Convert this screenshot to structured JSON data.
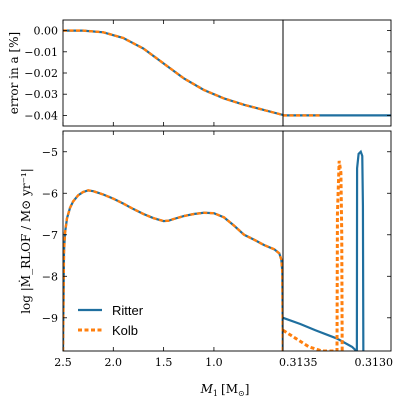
{
  "chart_data": {
    "type": "line",
    "colors": {
      "ritter": "#1f6f9f",
      "kolb": "#ff7f0e"
    },
    "xlabel": "M",
    "xlabel_sub": "1",
    "xlabel_unit": "[M",
    "xlabel_unit_sub": "⊙",
    "xlabel_unit_close": "]",
    "x_left_ticks": [
      "2.5",
      "2.0",
      "1.5",
      "1.0",
      "0.3135"
    ],
    "x_left_tick_values": [
      2.5,
      2.0,
      1.5,
      1.0,
      0.3135
    ],
    "x_left_range": [
      2.5,
      0.3135
    ],
    "x_right_ticks": [
      "0.3130"
    ],
    "x_right_range": [
      0.3135,
      0.313
    ],
    "top_panel": {
      "ylabel": "error in a [%]",
      "ylim": [
        -0.045,
        0.005
      ],
      "yticks": [
        "0.00",
        "−0.01",
        "−0.02",
        "−0.03",
        "−0.04"
      ],
      "ytick_values": [
        0.0,
        -0.01,
        -0.02,
        -0.03,
        -0.04
      ],
      "series_left": {
        "x": [
          2.5,
          2.3,
          2.1,
          1.9,
          1.7,
          1.5,
          1.3,
          1.1,
          0.9,
          0.7,
          0.5,
          0.3135
        ],
        "y": [
          0.0,
          0.0,
          -0.0008,
          -0.0035,
          -0.0085,
          -0.0155,
          -0.0225,
          -0.028,
          -0.032,
          -0.035,
          -0.0375,
          -0.0398
        ]
      },
      "series_right": {
        "x": [
          0.3135,
          0.313
        ],
        "y": [
          -0.04,
          -0.04
        ]
      }
    },
    "bottom_panel": {
      "ylabel": "log |Ṁ_RLOF / M⊙ yr⁻¹|",
      "ylim": [
        -9.8,
        -4.5
      ],
      "yticks": [
        "−5",
        "−6",
        "−7",
        "−8",
        "−9"
      ],
      "ytick_values": [
        -5,
        -6,
        -7,
        -8,
        -9
      ],
      "series_left": {
        "x": [
          2.5,
          2.49,
          2.48,
          2.46,
          2.43,
          2.4,
          2.35,
          2.3,
          2.25,
          2.2,
          2.15,
          2.1,
          2.0,
          1.9,
          1.8,
          1.7,
          1.6,
          1.5,
          1.45,
          1.4,
          1.3,
          1.2,
          1.1,
          1.0,
          0.9,
          0.8,
          0.7,
          0.6,
          0.5,
          0.45,
          0.4,
          0.35,
          0.33,
          0.32,
          0.315
        ],
        "y": [
          -9.8,
          -7.4,
          -6.95,
          -6.6,
          -6.35,
          -6.2,
          -6.05,
          -5.97,
          -5.93,
          -5.95,
          -5.99,
          -6.03,
          -6.13,
          -6.25,
          -6.38,
          -6.5,
          -6.6,
          -6.67,
          -6.66,
          -6.62,
          -6.55,
          -6.5,
          -6.47,
          -6.48,
          -6.58,
          -6.78,
          -7.0,
          -7.12,
          -7.25,
          -7.3,
          -7.35,
          -7.45,
          -7.6,
          -7.9,
          -9.8
        ]
      },
      "ritter_right": {
        "x": [
          0.3135,
          0.31342,
          0.31335,
          0.31325,
          0.31318,
          0.31316,
          0.313158,
          0.313157,
          0.31315,
          0.31314,
          0.313133,
          0.31313,
          0.313128
        ],
        "y": [
          -9.0,
          -9.15,
          -9.3,
          -9.5,
          -9.7,
          -9.8,
          -9.8,
          -5.4,
          -5.05,
          -5.0,
          -5.1,
          -6.3,
          -9.8
        ]
      },
      "kolb_right": {
        "x": [
          0.3135,
          0.31344,
          0.31338,
          0.31332,
          0.31327,
          0.31325,
          0.313248,
          0.31324,
          0.313232,
          0.313228,
          0.313226
        ],
        "y": [
          -9.3,
          -9.5,
          -9.7,
          -9.8,
          -9.8,
          -9.8,
          -6.5,
          -5.22,
          -5.5,
          -7.0,
          -9.8
        ]
      }
    },
    "legend": {
      "placement": "lower-left",
      "entries": [
        "Ritter",
        "Kolb"
      ]
    }
  }
}
